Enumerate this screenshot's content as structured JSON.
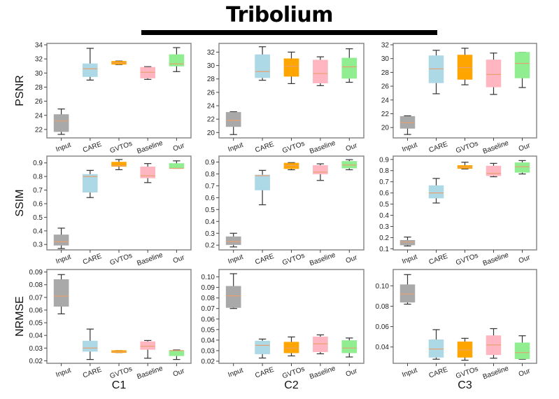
{
  "figure": {
    "title": "Tribolium"
  },
  "chart_data": {
    "type": "box",
    "title": "Tribolium",
    "categories": [
      "Input",
      "CARE",
      "GVTOs",
      "Baseline",
      "Our"
    ],
    "colors": {
      "Input": "#a9a9a9",
      "CARE": "#add8e6",
      "GVTOs": "#ffa500",
      "Baseline": "#ffb6c1",
      "Our": "#90ee90",
      "median": "#e8a070",
      "whisker": "#333333",
      "frame": "#888888"
    },
    "columns": [
      "C1",
      "C2",
      "C3"
    ],
    "rows": [
      "PSNR",
      "SSIM",
      "NRMSE"
    ],
    "panels": [
      {
        "row": "PSNR",
        "column": "C1",
        "ylabel": "PSNR",
        "ylim": [
          20.8,
          34.2
        ],
        "yticks": [
          22,
          24,
          26,
          28,
          30,
          32,
          34
        ],
        "ytick_labels": [
          "22",
          "24",
          "26",
          "28",
          "30",
          "32",
          "34"
        ],
        "boxes": [
          {
            "category": "Input",
            "whislo": 21.3,
            "q1": 21.7,
            "med": 23.2,
            "q3": 24.1,
            "whishi": 24.9
          },
          {
            "category": "CARE",
            "whislo": 29.0,
            "q1": 29.5,
            "med": 30.6,
            "q3": 31.3,
            "whishi": 33.5
          },
          {
            "category": "GVTOs",
            "whislo": 31.2,
            "q1": 31.25,
            "med": 31.45,
            "q3": 31.65,
            "whishi": 31.7
          },
          {
            "category": "Baseline",
            "whislo": 29.1,
            "q1": 29.3,
            "med": 30.1,
            "q3": 30.8,
            "whishi": 30.9
          },
          {
            "category": "Our",
            "whislo": 30.2,
            "q1": 31.0,
            "med": 31.3,
            "q3": 32.6,
            "whishi": 33.6
          }
        ]
      },
      {
        "row": "PSNR",
        "column": "C2",
        "ylabel": "",
        "ylim": [
          19.2,
          33.3
        ],
        "yticks": [
          20,
          22,
          24,
          26,
          28,
          30,
          32
        ],
        "ytick_labels": [
          "20",
          "22",
          "24",
          "26",
          "28",
          "30",
          "32"
        ],
        "boxes": [
          {
            "category": "Input",
            "whislo": 19.7,
            "q1": 20.9,
            "med": 21.8,
            "q3": 23.0,
            "whishi": 23.1
          },
          {
            "category": "CARE",
            "whislo": 27.8,
            "q1": 28.2,
            "med": 29.1,
            "q3": 31.6,
            "whishi": 32.8
          },
          {
            "category": "GVTOs",
            "whislo": 27.3,
            "q1": 28.4,
            "med": 29.9,
            "q3": 31.0,
            "whishi": 32.0
          },
          {
            "category": "Baseline",
            "whislo": 27.0,
            "q1": 27.4,
            "med": 28.8,
            "q3": 30.8,
            "whishi": 31.3
          },
          {
            "category": "Our",
            "whislo": 27.5,
            "q1": 28.1,
            "med": 29.8,
            "q3": 31.1,
            "whishi": 32.5
          }
        ]
      },
      {
        "row": "PSNR",
        "column": "C3",
        "ylabel": "",
        "ylim": [
          18.5,
          32.2
        ],
        "yticks": [
          20,
          22,
          24,
          26,
          28,
          30,
          32
        ],
        "ytick_labels": [
          "20",
          "22",
          "24",
          "26",
          "28",
          "30",
          "32"
        ],
        "boxes": [
          {
            "category": "Input",
            "whislo": 19.0,
            "q1": 19.9,
            "med": 20.7,
            "q3": 21.6,
            "whishi": 21.7
          },
          {
            "category": "CARE",
            "whislo": 24.9,
            "q1": 26.5,
            "med": 28.5,
            "q3": 30.4,
            "whishi": 31.2
          },
          {
            "category": "GVTOs",
            "whislo": 26.2,
            "q1": 27.0,
            "med": 28.7,
            "q3": 30.5,
            "whishi": 31.5
          },
          {
            "category": "Baseline",
            "whislo": 24.8,
            "q1": 25.9,
            "med": 27.7,
            "q3": 29.8,
            "whishi": 30.8
          },
          {
            "category": "Our",
            "whislo": 25.8,
            "q1": 27.2,
            "med": 29.3,
            "q3": 30.9,
            "whishi": 30.9
          }
        ]
      },
      {
        "row": "SSIM",
        "column": "C1",
        "ylabel": "SSIM",
        "ylim": [
          0.26,
          0.95
        ],
        "yticks": [
          0.3,
          0.4,
          0.5,
          0.6,
          0.7,
          0.8,
          0.9
        ],
        "ytick_labels": [
          "0.3",
          "0.4",
          "0.5",
          "0.6",
          "0.7",
          "0.8",
          "0.9"
        ],
        "boxes": [
          {
            "category": "Input",
            "whislo": 0.27,
            "q1": 0.295,
            "med": 0.32,
            "q3": 0.37,
            "whishi": 0.42
          },
          {
            "category": "CARE",
            "whislo": 0.645,
            "q1": 0.685,
            "med": 0.8,
            "q3": 0.815,
            "whishi": 0.845
          },
          {
            "category": "GVTOs",
            "whislo": 0.85,
            "q1": 0.875,
            "med": 0.88,
            "q3": 0.905,
            "whishi": 0.925
          },
          {
            "category": "Baseline",
            "whislo": 0.755,
            "q1": 0.79,
            "med": 0.805,
            "q3": 0.87,
            "whishi": 0.895
          },
          {
            "category": "Our",
            "whislo": 0.86,
            "q1": 0.86,
            "med": 0.86,
            "q3": 0.895,
            "whishi": 0.915
          }
        ]
      },
      {
        "row": "SSIM",
        "column": "C2",
        "ylabel": "",
        "ylim": [
          0.16,
          0.95
        ],
        "yticks": [
          0.2,
          0.3,
          0.4,
          0.5,
          0.6,
          0.7,
          0.8,
          0.9
        ],
        "ytick_labels": [
          "0.2",
          "0.3",
          "0.4",
          "0.5",
          "0.6",
          "0.7",
          "0.8",
          "0.9"
        ],
        "boxes": [
          {
            "category": "Input",
            "whislo": 0.185,
            "q1": 0.205,
            "med": 0.23,
            "q3": 0.27,
            "whishi": 0.3
          },
          {
            "category": "CARE",
            "whislo": 0.54,
            "q1": 0.665,
            "med": 0.785,
            "q3": 0.79,
            "whishi": 0.83
          },
          {
            "category": "GVTOs",
            "whislo": 0.835,
            "q1": 0.845,
            "med": 0.87,
            "q3": 0.89,
            "whishi": 0.895
          },
          {
            "category": "Baseline",
            "whislo": 0.745,
            "q1": 0.8,
            "med": 0.815,
            "q3": 0.87,
            "whishi": 0.885
          },
          {
            "category": "Our",
            "whislo": 0.835,
            "q1": 0.85,
            "med": 0.875,
            "q3": 0.905,
            "whishi": 0.92
          }
        ]
      },
      {
        "row": "SSIM",
        "column": "C3",
        "ylabel": "",
        "ylim": [
          0.09,
          0.93
        ],
        "yticks": [
          0.1,
          0.2,
          0.3,
          0.4,
          0.5,
          0.6,
          0.7,
          0.8,
          0.9
        ],
        "ytick_labels": [
          "0.1",
          "0.2",
          "0.3",
          "0.4",
          "0.5",
          "0.6",
          "0.7",
          "0.8",
          "0.9"
        ],
        "boxes": [
          {
            "category": "Input",
            "whislo": 0.125,
            "q1": 0.135,
            "med": 0.16,
            "q3": 0.175,
            "whishi": 0.205
          },
          {
            "category": "CARE",
            "whislo": 0.51,
            "q1": 0.555,
            "med": 0.6,
            "q3": 0.665,
            "whishi": 0.73
          },
          {
            "category": "GVTOs",
            "whislo": 0.815,
            "q1": 0.82,
            "med": 0.83,
            "q3": 0.845,
            "whishi": 0.875
          },
          {
            "category": "Baseline",
            "whislo": 0.745,
            "q1": 0.755,
            "med": 0.775,
            "q3": 0.84,
            "whishi": 0.865
          },
          {
            "category": "Our",
            "whislo": 0.77,
            "q1": 0.785,
            "med": 0.835,
            "q3": 0.87,
            "whishi": 0.89
          }
        ]
      },
      {
        "row": "NRMSE",
        "column": "C1",
        "ylabel": "NRMSE",
        "ylim": [
          0.018,
          0.092
        ],
        "yticks": [
          0.02,
          0.03,
          0.04,
          0.05,
          0.06,
          0.07,
          0.08,
          0.09
        ],
        "ytick_labels": [
          "0.02",
          "0.03",
          "0.04",
          "0.05",
          "0.06",
          "0.07",
          "0.08",
          "0.09"
        ],
        "boxes": [
          {
            "category": "Input",
            "whislo": 0.057,
            "q1": 0.063,
            "med": 0.071,
            "q3": 0.084,
            "whishi": 0.088
          },
          {
            "category": "CARE",
            "whislo": 0.021,
            "q1": 0.0275,
            "med": 0.03,
            "q3": 0.0355,
            "whishi": 0.045
          },
          {
            "category": "GVTOs",
            "whislo": 0.0265,
            "q1": 0.0265,
            "med": 0.027,
            "q3": 0.028,
            "whishi": 0.028
          },
          {
            "category": "Baseline",
            "whislo": 0.022,
            "q1": 0.029,
            "med": 0.0315,
            "q3": 0.035,
            "whishi": 0.036
          },
          {
            "category": "Our",
            "whislo": 0.021,
            "q1": 0.024,
            "med": 0.028,
            "q3": 0.028,
            "whishi": 0.0285
          }
        ]
      },
      {
        "row": "NRMSE",
        "column": "C2",
        "ylabel": "",
        "ylim": [
          0.018,
          0.107
        ],
        "yticks": [
          0.02,
          0.03,
          0.04,
          0.05,
          0.06,
          0.07,
          0.08,
          0.09,
          0.1
        ],
        "ytick_labels": [
          "0.02",
          "0.03",
          "0.04",
          "0.05",
          "0.06",
          "0.07",
          "0.08",
          "0.09",
          "0.10"
        ],
        "boxes": [
          {
            "category": "Input",
            "whislo": 0.07,
            "q1": 0.071,
            "med": 0.082,
            "q3": 0.091,
            "whishi": 0.103
          },
          {
            "category": "CARE",
            "whislo": 0.023,
            "q1": 0.027,
            "med": 0.035,
            "q3": 0.039,
            "whishi": 0.041
          },
          {
            "category": "GVTOs",
            "whislo": 0.025,
            "q1": 0.028,
            "med": 0.0325,
            "q3": 0.038,
            "whishi": 0.043
          },
          {
            "category": "Baseline",
            "whislo": 0.027,
            "q1": 0.029,
            "med": 0.0365,
            "q3": 0.043,
            "whishi": 0.045
          },
          {
            "category": "Our",
            "whislo": 0.024,
            "q1": 0.028,
            "med": 0.0325,
            "q3": 0.0395,
            "whishi": 0.042
          }
        ]
      },
      {
        "row": "NRMSE",
        "column": "C3",
        "ylabel": "",
        "ylim": [
          0.024,
          0.116
        ],
        "yticks": [
          0.04,
          0.06,
          0.08,
          0.1
        ],
        "ytick_labels": [
          "0.04",
          "0.06",
          "0.08",
          "0.10"
        ],
        "boxes": [
          {
            "category": "Input",
            "whislo": 0.082,
            "q1": 0.084,
            "med": 0.092,
            "q3": 0.101,
            "whishi": 0.111
          },
          {
            "category": "CARE",
            "whislo": 0.028,
            "q1": 0.03,
            "med": 0.038,
            "q3": 0.047,
            "whishi": 0.057
          },
          {
            "category": "GVTOs",
            "whislo": 0.027,
            "q1": 0.03,
            "med": 0.037,
            "q3": 0.045,
            "whishi": 0.0485
          },
          {
            "category": "Baseline",
            "whislo": 0.029,
            "q1": 0.0325,
            "med": 0.042,
            "q3": 0.051,
            "whishi": 0.058
          },
          {
            "category": "Our",
            "whislo": 0.028,
            "q1": 0.0285,
            "med": 0.0345,
            "q3": 0.044,
            "whishi": 0.051
          }
        ]
      }
    ]
  }
}
